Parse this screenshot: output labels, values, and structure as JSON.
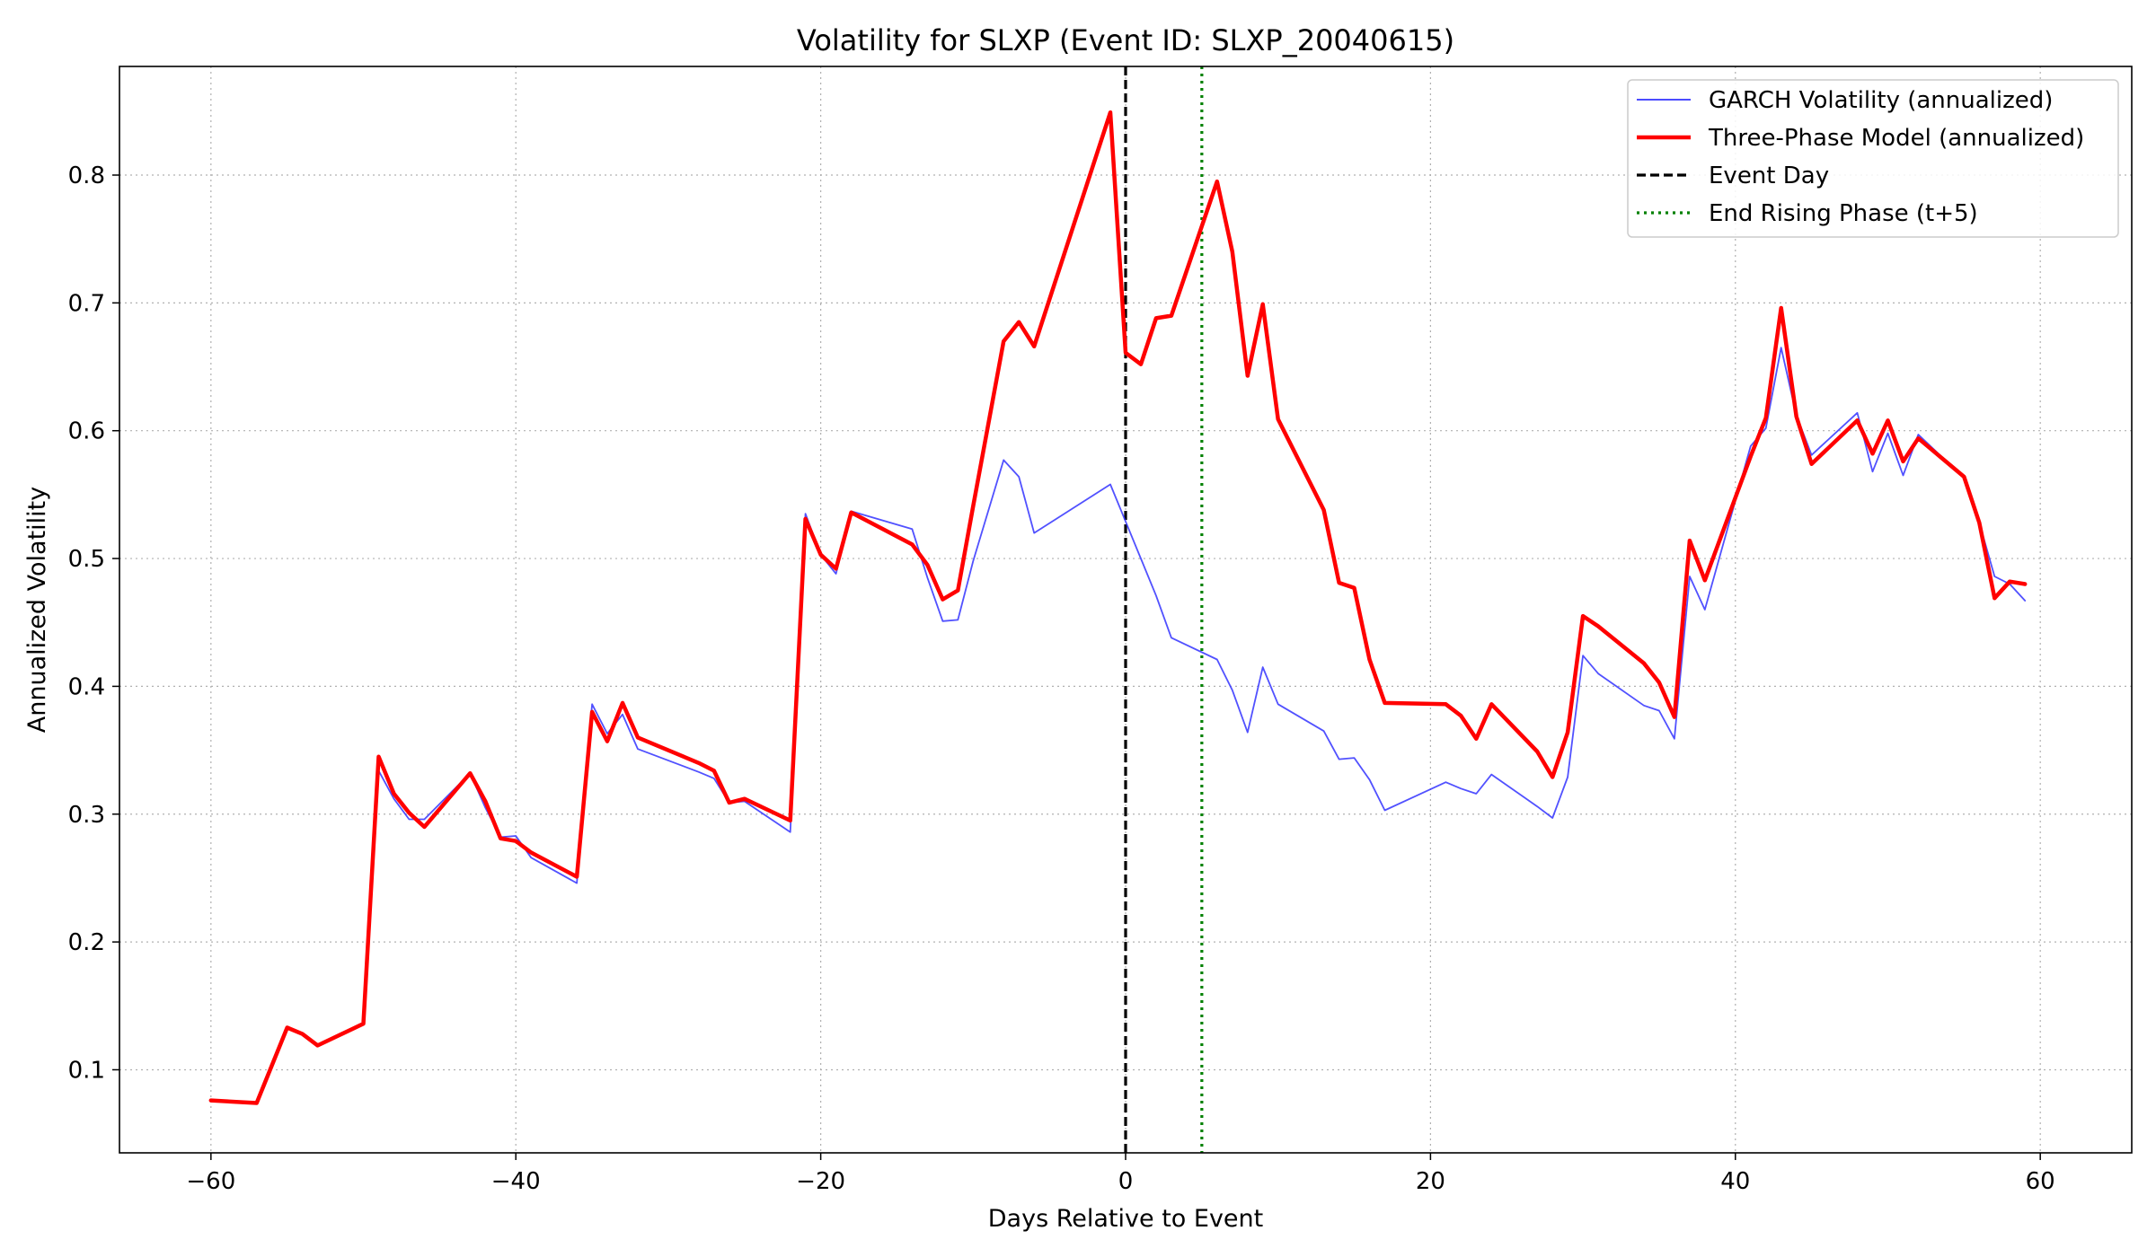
{
  "chart_data": {
    "type": "line",
    "title": "Volatility for SLXP (Event ID: SLXP_20040615)",
    "xlabel": "Days Relative to Event",
    "ylabel": "Annualized Volatility",
    "xlim": [
      -66,
      66
    ],
    "ylim": [
      0.035,
      0.885
    ],
    "xticks": [
      -60,
      -40,
      -20,
      0,
      20,
      40,
      60
    ],
    "xtick_labels": [
      "−60",
      "−40",
      "−20",
      "0",
      "20",
      "40",
      "60"
    ],
    "yticks": [
      0.1,
      0.2,
      0.3,
      0.4,
      0.5,
      0.6,
      0.7,
      0.8
    ],
    "ytick_labels": [
      "0.1",
      "0.2",
      "0.3",
      "0.4",
      "0.5",
      "0.6",
      "0.7",
      "0.8"
    ],
    "grid": true,
    "legend_position": "top-right",
    "series": [
      {
        "name": "GARCH Volatility (annualized)",
        "color": "#3333ff",
        "style": "solid-thin",
        "points": [
          [
            -60,
            0.076
          ],
          [
            -57,
            0.074
          ],
          [
            -55,
            0.133
          ],
          [
            -54,
            0.128
          ],
          [
            -53,
            0.119
          ],
          [
            -50,
            0.136
          ],
          [
            -49,
            0.334
          ],
          [
            -48,
            0.312
          ],
          [
            -47,
            0.296
          ],
          [
            -46,
            0.296
          ],
          [
            -43,
            0.332
          ],
          [
            -42,
            0.305
          ],
          [
            -41,
            0.282
          ],
          [
            -40,
            0.283
          ],
          [
            -39,
            0.266
          ],
          [
            -36,
            0.246
          ],
          [
            -35,
            0.386
          ],
          [
            -34,
            0.363
          ],
          [
            -33,
            0.378
          ],
          [
            -32,
            0.351
          ],
          [
            -28,
            0.333
          ],
          [
            -27,
            0.328
          ],
          [
            -26,
            0.309
          ],
          [
            -25,
            0.31
          ],
          [
            -22,
            0.286
          ],
          [
            -21,
            0.535
          ],
          [
            -20,
            0.503
          ],
          [
            -19,
            0.488
          ],
          [
            -18,
            0.537
          ],
          [
            -14,
            0.523
          ],
          [
            -13,
            0.485
          ],
          [
            -12,
            0.451
          ],
          [
            -11,
            0.452
          ],
          [
            -10,
            0.498
          ],
          [
            -8,
            0.577
          ],
          [
            -7,
            0.564
          ],
          [
            -6,
            0.52
          ],
          [
            -1,
            0.558
          ],
          [
            0,
            0.529
          ],
          [
            2,
            0.471
          ],
          [
            3,
            0.438
          ],
          [
            6,
            0.421
          ],
          [
            7,
            0.397
          ],
          [
            8,
            0.364
          ],
          [
            9,
            0.415
          ],
          [
            10,
            0.386
          ],
          [
            13,
            0.365
          ],
          [
            14,
            0.343
          ],
          [
            15,
            0.344
          ],
          [
            16,
            0.327
          ],
          [
            17,
            0.303
          ],
          [
            21,
            0.325
          ],
          [
            22,
            0.32
          ],
          [
            23,
            0.316
          ],
          [
            24,
            0.331
          ],
          [
            27,
            0.306
          ],
          [
            28,
            0.297
          ],
          [
            29,
            0.329
          ],
          [
            30,
            0.424
          ],
          [
            31,
            0.41
          ],
          [
            34,
            0.385
          ],
          [
            35,
            0.381
          ],
          [
            36,
            0.359
          ],
          [
            37,
            0.486
          ],
          [
            38,
            0.46
          ],
          [
            41,
            0.588
          ],
          [
            42,
            0.602
          ],
          [
            43,
            0.665
          ],
          [
            44,
            0.612
          ],
          [
            45,
            0.581
          ],
          [
            48,
            0.614
          ],
          [
            49,
            0.568
          ],
          [
            50,
            0.598
          ],
          [
            51,
            0.565
          ],
          [
            52,
            0.597
          ],
          [
            55,
            0.563
          ],
          [
            56,
            0.528
          ],
          [
            57,
            0.486
          ],
          [
            58,
            0.48
          ],
          [
            59,
            0.467
          ]
        ]
      },
      {
        "name": "Three-Phase Model (annualized)",
        "color": "#ff0000",
        "style": "solid-thick",
        "points": [
          [
            -60,
            0.076
          ],
          [
            -57,
            0.074
          ],
          [
            -55,
            0.133
          ],
          [
            -54,
            0.128
          ],
          [
            -53,
            0.119
          ],
          [
            -50,
            0.136
          ],
          [
            -49,
            0.345
          ],
          [
            -48,
            0.316
          ],
          [
            -47,
            0.301
          ],
          [
            -46,
            0.29
          ],
          [
            -43,
            0.332
          ],
          [
            -42,
            0.31
          ],
          [
            -41,
            0.281
          ],
          [
            -40,
            0.279
          ],
          [
            -39,
            0.27
          ],
          [
            -36,
            0.251
          ],
          [
            -35,
            0.38
          ],
          [
            -34,
            0.357
          ],
          [
            -33,
            0.387
          ],
          [
            -32,
            0.36
          ],
          [
            -28,
            0.34
          ],
          [
            -27,
            0.334
          ],
          [
            -26,
            0.309
          ],
          [
            -25,
            0.312
          ],
          [
            -22,
            0.295
          ],
          [
            -21,
            0.531
          ],
          [
            -20,
            0.503
          ],
          [
            -19,
            0.492
          ],
          [
            -18,
            0.536
          ],
          [
            -14,
            0.511
          ],
          [
            -13,
            0.495
          ],
          [
            -12,
            0.468
          ],
          [
            -11,
            0.475
          ],
          [
            -10,
            0.541
          ],
          [
            -8,
            0.67
          ],
          [
            -7,
            0.685
          ],
          [
            -6,
            0.666
          ],
          [
            -1,
            0.849
          ],
          [
            0,
            0.661
          ],
          [
            1,
            0.652
          ],
          [
            2,
            0.688
          ],
          [
            3,
            0.69
          ],
          [
            6,
            0.795
          ],
          [
            7,
            0.74
          ],
          [
            8,
            0.643
          ],
          [
            9,
            0.699
          ],
          [
            10,
            0.609
          ],
          [
            13,
            0.538
          ],
          [
            14,
            0.481
          ],
          [
            15,
            0.477
          ],
          [
            16,
            0.421
          ],
          [
            17,
            0.387
          ],
          [
            21,
            0.386
          ],
          [
            22,
            0.377
          ],
          [
            23,
            0.359
          ],
          [
            24,
            0.386
          ],
          [
            27,
            0.349
          ],
          [
            28,
            0.329
          ],
          [
            29,
            0.364
          ],
          [
            30,
            0.455
          ],
          [
            31,
            0.447
          ],
          [
            34,
            0.418
          ],
          [
            35,
            0.403
          ],
          [
            36,
            0.376
          ],
          [
            37,
            0.514
          ],
          [
            38,
            0.483
          ],
          [
            41,
            0.58
          ],
          [
            42,
            0.61
          ],
          [
            43,
            0.696
          ],
          [
            44,
            0.611
          ],
          [
            45,
            0.574
          ],
          [
            48,
            0.608
          ],
          [
            49,
            0.582
          ],
          [
            50,
            0.608
          ],
          [
            51,
            0.576
          ],
          [
            52,
            0.594
          ],
          [
            55,
            0.564
          ],
          [
            56,
            0.528
          ],
          [
            57,
            0.469
          ],
          [
            58,
            0.482
          ],
          [
            59,
            0.48
          ]
        ]
      }
    ],
    "reference_lines": [
      {
        "name": "Event Day",
        "x": 0,
        "color": "#000000",
        "style": "dashed"
      },
      {
        "name": "End Rising Phase (t+5)",
        "x": 5,
        "color": "#008000",
        "style": "dotted"
      }
    ]
  }
}
